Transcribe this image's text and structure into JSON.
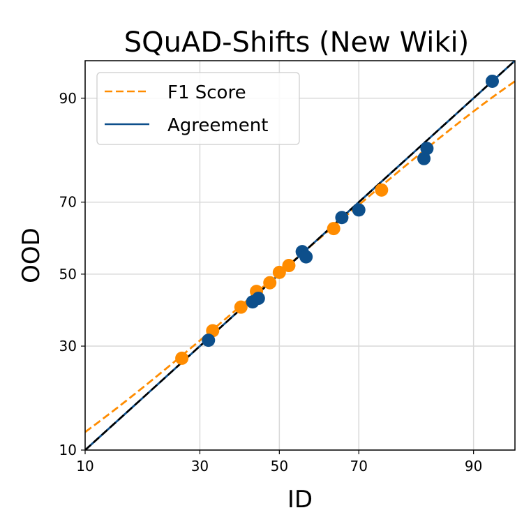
{
  "chart_data": {
    "type": "scatter",
    "title": "SQuAD-Shifts (New Wiki)",
    "xlabel": "ID",
    "ylabel": "OOD",
    "axis_scale": "probit",
    "xlim": [
      10,
      94
    ],
    "ylim": [
      10,
      94
    ],
    "xticks": [
      10,
      30,
      50,
      70,
      90
    ],
    "yticks": [
      10,
      30,
      50,
      70,
      90
    ],
    "grid": true,
    "legend": {
      "position": "top-left",
      "entries": [
        {
          "label": "F1 Score",
          "style": "dashed",
          "color": "#ff8c00"
        },
        {
          "label": "Agreement",
          "style": "solid",
          "color": "#0d4f8b"
        }
      ]
    },
    "reference_line": {
      "style": "dashed",
      "color": "#000000",
      "slope": 1
    },
    "series": [
      {
        "name": "F1 Score",
        "color": "#ff8c00",
        "points": [
          [
            26,
            27
          ],
          [
            33,
            34
          ],
          [
            40,
            40.5
          ],
          [
            44,
            45
          ],
          [
            47.5,
            47.5
          ],
          [
            50,
            50.5
          ],
          [
            52.5,
            52.5
          ],
          [
            64,
            63
          ],
          [
            75,
            73
          ]
        ]
      },
      {
        "name": "Agreement",
        "color": "#0d4f8b",
        "points": [
          [
            32,
            31.5
          ],
          [
            43,
            42
          ],
          [
            44.5,
            43
          ],
          [
            56,
            56.5
          ],
          [
            57,
            55
          ],
          [
            66,
            66
          ],
          [
            70,
            68
          ],
          [
            83,
            80
          ],
          [
            83.5,
            82
          ],
          [
            92,
            92
          ]
        ]
      }
    ],
    "fit_lines": [
      {
        "name": "F1 Score",
        "color": "#ff8c00",
        "style": "dashed",
        "from": [
          10,
          12.5
        ],
        "to": [
          94,
          92
        ]
      },
      {
        "name": "Agreement",
        "color": "#0d4f8b",
        "style": "solid",
        "from": [
          10,
          10
        ],
        "to": [
          94,
          94
        ]
      }
    ]
  }
}
